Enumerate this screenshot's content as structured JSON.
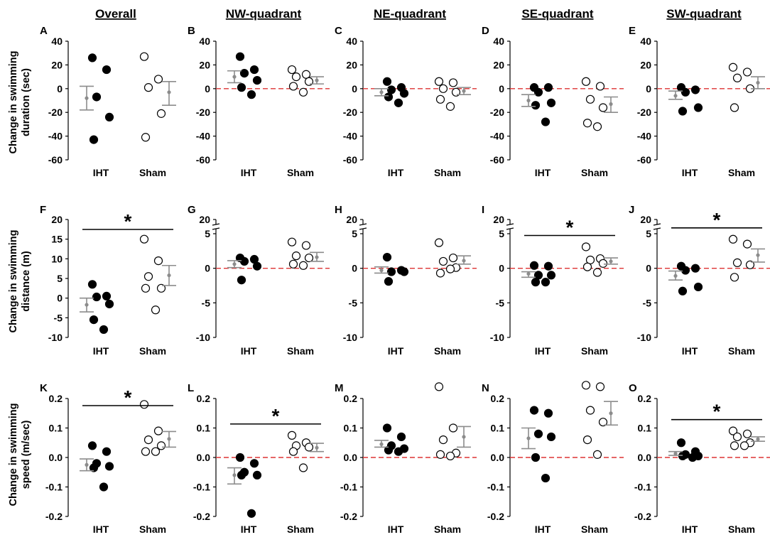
{
  "figure": {
    "column_titles": [
      "Overall",
      "NW-quadrant",
      "NE-quadrant",
      "SE-quadrant",
      "SW-quadrant"
    ],
    "row_labels": [
      {
        "line1": "Change in swimming",
        "line2": "duration (sec)"
      },
      {
        "line1": "Change in swimming",
        "line2": "distance (m)"
      },
      {
        "line1": "Change in swimming",
        "line2": "speed (m/sec)"
      }
    ],
    "categories": [
      "IHT",
      "Sham"
    ],
    "significance_marker": "*",
    "colors": {
      "iht_points": "#000000",
      "sham_points": "#ffffff",
      "summary": "#8c8c8c",
      "reference_line": "#dd3333",
      "axes": "#000000"
    }
  },
  "chart_data": [
    {
      "panel": "A",
      "type": "scatter",
      "row": 0,
      "col": 0,
      "ylabel": "Change in swimming duration (sec)",
      "ylim": [
        -60,
        40
      ],
      "yticks": [
        40,
        20,
        0,
        -20,
        -40,
        -60
      ],
      "ytick_labels": [
        "40",
        "20",
        "0",
        "-20",
        "-40",
        "-60"
      ],
      "categories": [
        "IHT",
        "Sham"
      ],
      "zero_line": false,
      "series": [
        {
          "name": "IHT",
          "values": [
            26,
            16,
            -7,
            -24,
            -43
          ],
          "mean": -8,
          "ci": [
            -18,
            2
          ]
        },
        {
          "name": "Sham",
          "values": [
            27,
            8,
            1,
            -21,
            -41
          ],
          "mean": -3,
          "ci": [
            -14,
            6
          ]
        }
      ],
      "significance": null
    },
    {
      "panel": "B",
      "type": "scatter",
      "row": 0,
      "col": 1,
      "ylim": [
        -60,
        40
      ],
      "yticks": [
        40,
        20,
        0,
        -20,
        -40,
        -60
      ],
      "ytick_labels": [
        "40",
        "20",
        "0",
        "-20",
        "-40",
        "-60"
      ],
      "categories": [
        "IHT",
        "Sham"
      ],
      "zero_line": true,
      "series": [
        {
          "name": "IHT",
          "values": [
            27,
            16,
            13,
            7,
            1,
            -5
          ],
          "mean": 10,
          "ci": [
            5,
            15
          ]
        },
        {
          "name": "Sham",
          "values": [
            16,
            12,
            10,
            6,
            2,
            -3
          ],
          "mean": 7,
          "ci": [
            4,
            10
          ]
        }
      ],
      "significance": null
    },
    {
      "panel": "C",
      "type": "scatter",
      "row": 0,
      "col": 2,
      "ylim": [
        -60,
        40
      ],
      "yticks": [
        40,
        20,
        0,
        -20,
        -40,
        -60
      ],
      "ytick_labels": [
        "40",
        "20",
        "0",
        "-20",
        "-40",
        "-60"
      ],
      "categories": [
        "IHT",
        "Sham"
      ],
      "zero_line": true,
      "series": [
        {
          "name": "IHT",
          "values": [
            6,
            1,
            -1,
            -4,
            -7,
            -12
          ],
          "mean": -3,
          "ci": [
            -6,
            0
          ]
        },
        {
          "name": "Sham",
          "values": [
            6,
            5,
            0,
            -3,
            -9,
            -15
          ],
          "mean": -2,
          "ci": [
            -5,
            1
          ]
        }
      ],
      "significance": null
    },
    {
      "panel": "D",
      "type": "scatter",
      "row": 0,
      "col": 3,
      "ylim": [
        -60,
        40
      ],
      "yticks": [
        40,
        20,
        0,
        -20,
        -40,
        -60
      ],
      "ytick_labels": [
        "40",
        "20",
        "0",
        "-20",
        "-40",
        "-60"
      ],
      "categories": [
        "IHT",
        "Sham"
      ],
      "zero_line": true,
      "series": [
        {
          "name": "IHT",
          "values": [
            1,
            1,
            -3,
            -12,
            -14,
            -28
          ],
          "mean": -10,
          "ci": [
            -15,
            -5
          ]
        },
        {
          "name": "Sham",
          "values": [
            6,
            2,
            -9,
            -16,
            -29,
            -32
          ],
          "mean": -13,
          "ci": [
            -20,
            -7
          ]
        }
      ],
      "significance": null
    },
    {
      "panel": "E",
      "type": "scatter",
      "row": 0,
      "col": 4,
      "ylim": [
        -60,
        40
      ],
      "yticks": [
        40,
        20,
        0,
        -20,
        -40,
        -60
      ],
      "ytick_labels": [
        "40",
        "20",
        "0",
        "-20",
        "-40",
        "-60"
      ],
      "categories": [
        "IHT",
        "Sham"
      ],
      "zero_line": true,
      "series": [
        {
          "name": "IHT",
          "values": [
            1,
            -1,
            -3,
            -16,
            -19
          ],
          "mean": -6,
          "ci": [
            -9,
            -2
          ]
        },
        {
          "name": "Sham",
          "values": [
            18,
            14,
            9,
            0,
            -16
          ],
          "mean": 5,
          "ci": [
            0,
            10
          ]
        }
      ],
      "significance": null
    },
    {
      "panel": "F",
      "type": "scatter",
      "row": 1,
      "col": 0,
      "ylabel": "Change in swimming distance (m)",
      "ylim": [
        -10,
        20
      ],
      "yticks": [
        20,
        15,
        10,
        5,
        0,
        -5,
        -10
      ],
      "ytick_labels": [
        "20",
        "15",
        "10",
        "5",
        "0",
        "-5",
        "-10"
      ],
      "categories": [
        "IHT",
        "Sham"
      ],
      "zero_line": false,
      "series": [
        {
          "name": "IHT",
          "values": [
            3.5,
            0.5,
            0.3,
            -1.5,
            -5.5,
            -8
          ],
          "mean": -1.7,
          "ci": [
            -3.5,
            0
          ]
        },
        {
          "name": "Sham",
          "values": [
            15,
            9.5,
            5.5,
            2.5,
            2.5,
            -3
          ],
          "mean": 5.8,
          "ci": [
            3.2,
            8.3
          ]
        }
      ],
      "significance": {
        "symbol": "*",
        "between": [
          "IHT",
          "Sham"
        ]
      }
    },
    {
      "panel": "G",
      "type": "scatter",
      "row": 1,
      "col": 1,
      "axis_break": true,
      "ylim": [
        -10,
        20
      ],
      "yticks": [
        20,
        5,
        0,
        -5,
        -10
      ],
      "ytick_labels": [
        "20",
        "5",
        "0",
        "-5",
        "-10"
      ],
      "categories": [
        "IHT",
        "Sham"
      ],
      "zero_line": true,
      "series": [
        {
          "name": "IHT",
          "values": [
            1.5,
            1.3,
            1,
            0.3,
            -1.7
          ],
          "mean": 0.6,
          "ci": [
            0.1,
            1.1
          ]
        },
        {
          "name": "Sham",
          "values": [
            3.8,
            3.3,
            1.8,
            1.5,
            0.6,
            0.4
          ],
          "mean": 1.6,
          "ci": [
            1,
            2.3
          ]
        }
      ],
      "significance": null
    },
    {
      "panel": "H",
      "type": "scatter",
      "row": 1,
      "col": 2,
      "axis_break": true,
      "ylim": [
        -10,
        20
      ],
      "yticks": [
        20,
        5,
        0,
        -5,
        -10
      ],
      "ytick_labels": [
        "20",
        "5",
        "0",
        "-5",
        "-10"
      ],
      "categories": [
        "IHT",
        "Sham"
      ],
      "zero_line": true,
      "series": [
        {
          "name": "IHT",
          "values": [
            1.6,
            -0.3,
            -0.5,
            -0.5,
            -1.9
          ],
          "mean": -0.3,
          "ci": [
            -0.7,
            0.2
          ]
        },
        {
          "name": "Sham",
          "values": [
            3.7,
            1.5,
            1,
            0.1,
            -0.7,
            -0.1
          ],
          "mean": 1.1,
          "ci": [
            0.6,
            1.8
          ]
        }
      ],
      "significance": null
    },
    {
      "panel": "I",
      "type": "scatter",
      "row": 1,
      "col": 3,
      "axis_break": true,
      "ylim": [
        -10,
        20
      ],
      "yticks": [
        20,
        5,
        0,
        -5,
        -10
      ],
      "ytick_labels": [
        "20",
        "5",
        "0",
        "-5",
        "-10"
      ],
      "categories": [
        "IHT",
        "Sham"
      ],
      "zero_line": true,
      "series": [
        {
          "name": "IHT",
          "values": [
            0.4,
            0.3,
            -1,
            -1,
            -2,
            -2
          ],
          "mean": -0.8,
          "ci": [
            -1.3,
            -0.5
          ]
        },
        {
          "name": "Sham",
          "values": [
            3.1,
            1.4,
            1.2,
            0.7,
            0.2,
            -0.6
          ],
          "mean": 1,
          "ci": [
            0.6,
            1.5
          ]
        }
      ],
      "significance": {
        "symbol": "*",
        "between": [
          "IHT",
          "Sham"
        ]
      }
    },
    {
      "panel": "J",
      "type": "scatter",
      "row": 1,
      "col": 4,
      "axis_break": true,
      "ylim": [
        -10,
        20
      ],
      "yticks": [
        20,
        5,
        0,
        -5,
        -10
      ],
      "ytick_labels": [
        "20",
        "5",
        "0",
        "-5",
        "-10"
      ],
      "categories": [
        "IHT",
        "Sham"
      ],
      "zero_line": true,
      "series": [
        {
          "name": "IHT",
          "values": [
            0.3,
            0,
            -0.3,
            -2.7,
            -3.3
          ],
          "mean": -1.1,
          "ci": [
            -1.7,
            -0.4
          ]
        },
        {
          "name": "Sham",
          "values": [
            4.2,
            3.5,
            0.8,
            0.5,
            -1.3
          ],
          "mean": 1.9,
          "ci": [
            0.9,
            2.8
          ]
        }
      ],
      "significance": {
        "symbol": "*",
        "between": [
          "IHT",
          "Sham"
        ]
      }
    },
    {
      "panel": "K",
      "type": "scatter",
      "row": 2,
      "col": 0,
      "ylabel": "Change in swimming speed (m/sec)",
      "ylim": [
        -0.2,
        0.25
      ],
      "yticks": [
        0.2,
        0.1,
        0.0,
        -0.1,
        -0.2
      ],
      "ytick_labels": [
        "0.2",
        "0.1",
        "0.0",
        "-0.1",
        "-0.2"
      ],
      "categories": [
        "IHT",
        "Sham"
      ],
      "zero_line": false,
      "series": [
        {
          "name": "IHT",
          "values": [
            0.04,
            0.02,
            -0.02,
            -0.03,
            -0.035,
            -0.1
          ],
          "mean": -0.025,
          "ci": [
            -0.045,
            -0.005
          ]
        },
        {
          "name": "Sham",
          "values": [
            0.18,
            0.09,
            0.06,
            0.04,
            0.02,
            0.02
          ],
          "mean": 0.063,
          "ci": [
            0.035,
            0.088
          ]
        }
      ],
      "significance": {
        "symbol": "*",
        "between": [
          "IHT",
          "Sham"
        ]
      }
    },
    {
      "panel": "L",
      "type": "scatter",
      "row": 2,
      "col": 1,
      "ylim": [
        -0.2,
        0.25
      ],
      "yticks": [
        0.2,
        0.1,
        0.0,
        -0.1,
        -0.2
      ],
      "ytick_labels": [
        "0.2",
        "0.1",
        "0.0",
        "-0.1",
        "-0.2"
      ],
      "categories": [
        "IHT",
        "Sham"
      ],
      "zero_line": true,
      "series": [
        {
          "name": "IHT",
          "values": [
            0.0,
            -0.02,
            -0.05,
            -0.06,
            -0.06,
            -0.19
          ],
          "mean": -0.06,
          "ci": [
            -0.09,
            -0.035
          ]
        },
        {
          "name": "Sham",
          "values": [
            0.075,
            0.05,
            0.04,
            0.035,
            0.02,
            -0.035
          ],
          "mean": 0.033,
          "ci": [
            0.02,
            0.048
          ]
        }
      ],
      "significance": {
        "symbol": "*",
        "between": [
          "IHT",
          "Sham"
        ]
      }
    },
    {
      "panel": "M",
      "type": "scatter",
      "row": 2,
      "col": 2,
      "ylim": [
        -0.2,
        0.25
      ],
      "yticks": [
        0.2,
        0.1,
        0.0,
        -0.1,
        -0.2
      ],
      "ytick_labels": [
        "0.2",
        "0.1",
        "0.0",
        "-0.1",
        "-0.2"
      ],
      "categories": [
        "IHT",
        "Sham"
      ],
      "zero_line": true,
      "series": [
        {
          "name": "IHT",
          "values": [
            0.1,
            0.07,
            0.04,
            0.03,
            0.025,
            0.02
          ],
          "mean": 0.045,
          "ci": [
            0.035,
            0.058
          ]
        },
        {
          "name": "Sham",
          "values": [
            0.24,
            0.1,
            0.06,
            0.015,
            0.01,
            0.005
          ],
          "mean": 0.07,
          "ci": [
            0.035,
            0.105
          ]
        }
      ],
      "significance": null
    },
    {
      "panel": "N",
      "type": "scatter",
      "row": 2,
      "col": 3,
      "ylim": [
        -0.2,
        0.25
      ],
      "yticks": [
        0.2,
        0.1,
        0.0,
        -0.1,
        -0.2
      ],
      "ytick_labels": [
        "0.2",
        "0.1",
        "0.0",
        "-0.1",
        "-0.2"
      ],
      "categories": [
        "IHT",
        "Sham"
      ],
      "zero_line": true,
      "series": [
        {
          "name": "IHT",
          "values": [
            0.16,
            0.15,
            0.08,
            0.07,
            0.0,
            -0.07
          ],
          "mean": 0.065,
          "ci": [
            0.03,
            0.1
          ]
        },
        {
          "name": "Sham",
          "values": [
            0.245,
            0.24,
            0.16,
            0.12,
            0.06,
            0.01
          ],
          "mean": 0.15,
          "ci": [
            0.11,
            0.19
          ]
        }
      ],
      "significance": null
    },
    {
      "panel": "O",
      "type": "scatter",
      "row": 2,
      "col": 4,
      "ylim": [
        -0.2,
        0.25
      ],
      "yticks": [
        0.2,
        0.1,
        0.0,
        -0.1,
        -0.2
      ],
      "ytick_labels": [
        "0.2",
        "0.1",
        "0.0",
        "-0.1",
        "-0.2"
      ],
      "categories": [
        "IHT",
        "Sham"
      ],
      "zero_line": true,
      "series": [
        {
          "name": "IHT",
          "values": [
            0.05,
            0.02,
            0.01,
            0.005,
            0.005,
            0.0
          ],
          "mean": 0.013,
          "ci": [
            0.007,
            0.02
          ]
        },
        {
          "name": "Sham",
          "values": [
            0.09,
            0.08,
            0.07,
            0.05,
            0.04,
            0.04
          ],
          "mean": 0.062,
          "ci": [
            0.055,
            0.07
          ]
        }
      ],
      "significance": {
        "symbol": "*",
        "between": [
          "IHT",
          "Sham"
        ]
      }
    }
  ]
}
